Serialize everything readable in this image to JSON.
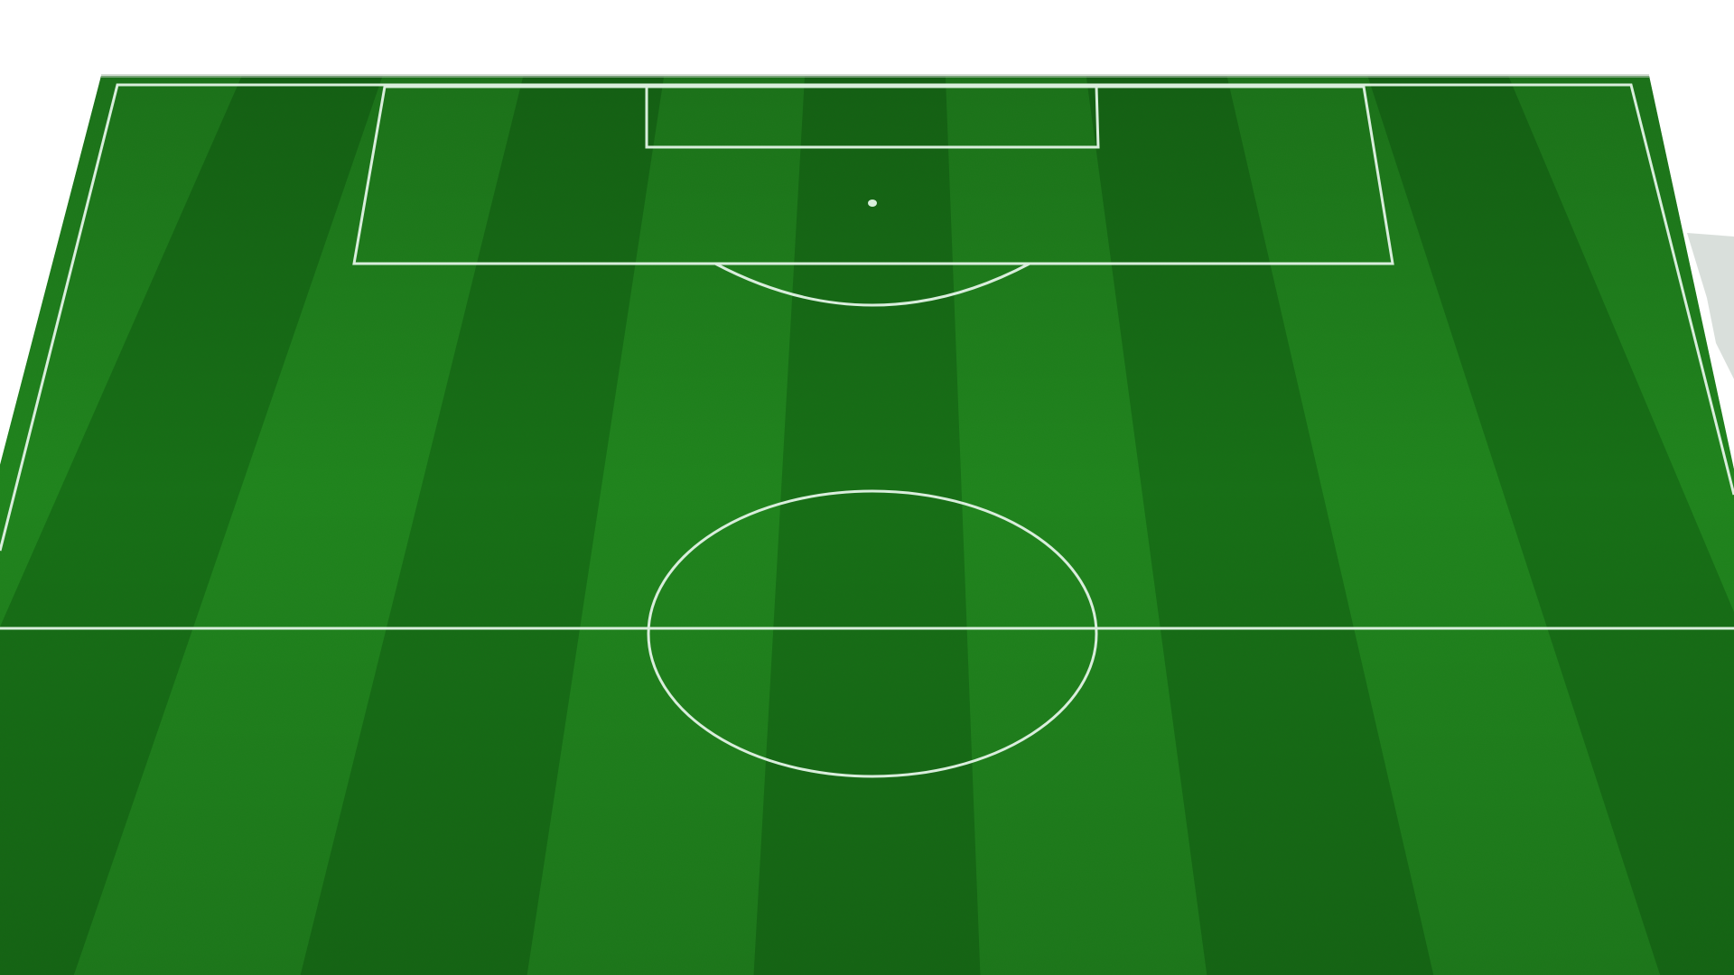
{
  "scene": {
    "subject": "football-pitch-half",
    "view": "perspective-top-down",
    "background_color": "#ffffff",
    "grass_colors": {
      "dark_stripe": "#1f7a1f",
      "light_stripe": "#2a8f24",
      "deep_shade": "#176416"
    },
    "line_color": "#d9eedc",
    "stripe_count": 11
  }
}
